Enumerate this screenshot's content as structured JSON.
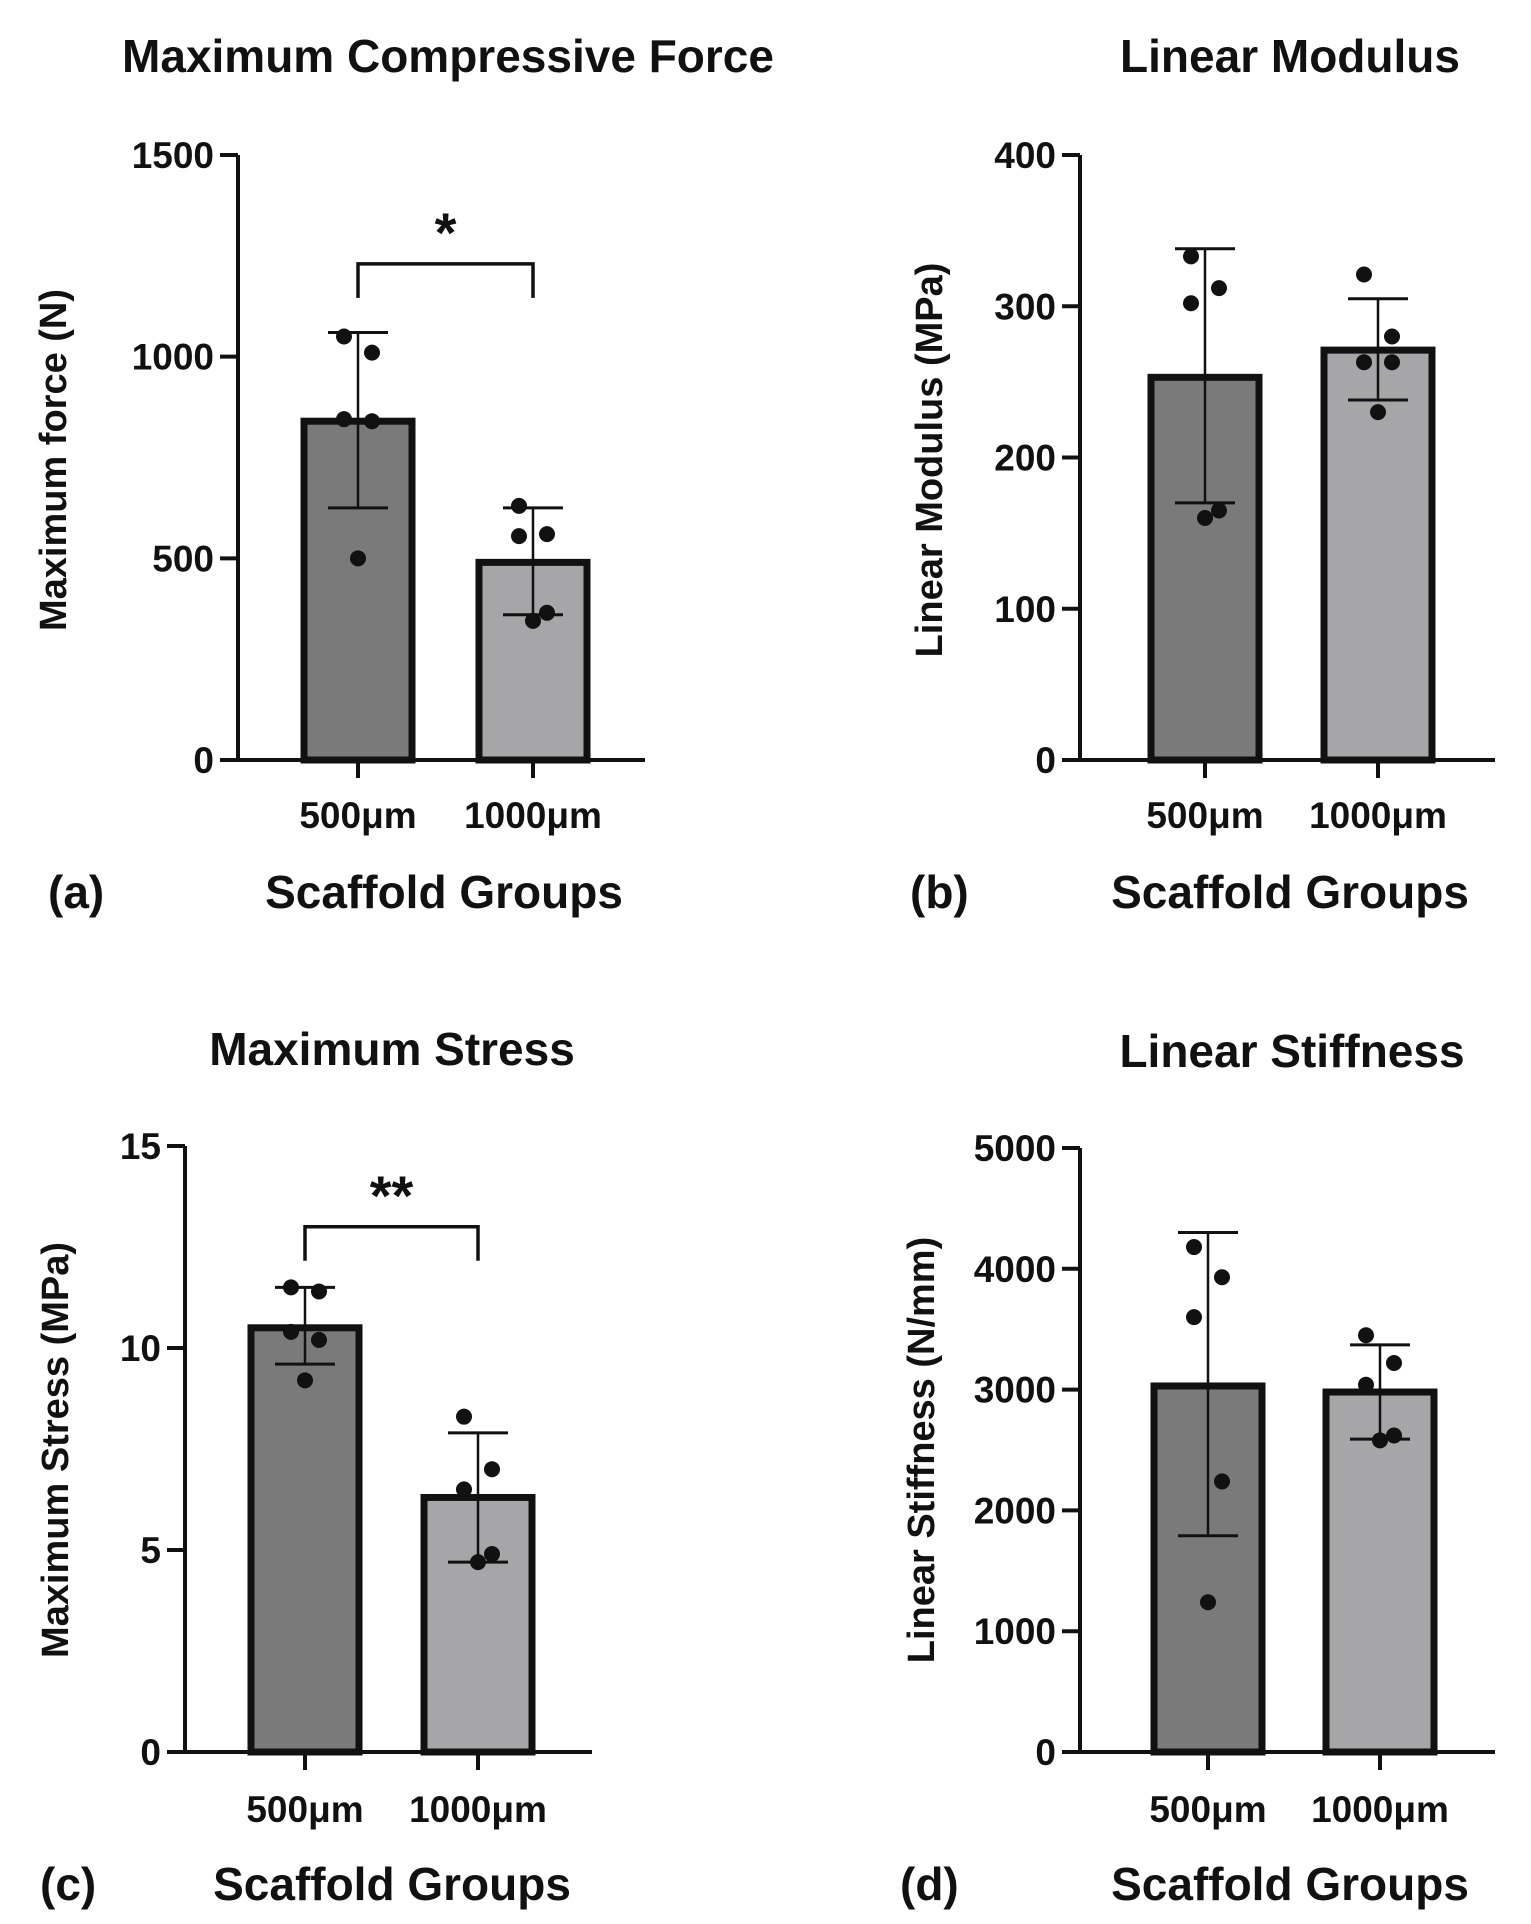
{
  "colors": {
    "bar_500": "#7a7a7a",
    "bar_1000": "#a6a6a9",
    "outline": "#111111",
    "background": "#ffffff"
  },
  "chart_data": [
    {
      "panel": "(a)",
      "type": "bar",
      "title": "Maximum Compressive Force",
      "xlabel": "Scaffold Groups",
      "ylabel": "Maximum force (N)",
      "ylim": [
        0,
        1500
      ],
      "yticks": [
        0,
        500,
        1000,
        1500
      ],
      "ytick_labels": [
        "0",
        "500",
        "1000",
        "1500"
      ],
      "categories": [
        "500μm",
        "1000μm"
      ],
      "values": [
        840,
        490
      ],
      "error_low": [
        625,
        360
      ],
      "error_high": [
        1060,
        625
      ],
      "points": [
        [
          1050,
          1010,
          845,
          840,
          500
        ],
        [
          630,
          560,
          555,
          365,
          345
        ]
      ],
      "significance": {
        "label": "*",
        "from": 0,
        "to": 1,
        "y": 1230
      }
    },
    {
      "panel": "(b)",
      "type": "bar",
      "title": "Linear Modulus",
      "xlabel": "Scaffold Groups",
      "ylabel": "Linear Modulus (MPa)",
      "ylim": [
        0,
        400
      ],
      "yticks": [
        0,
        100,
        200,
        300,
        400
      ],
      "ytick_labels": [
        "0",
        "100",
        "200",
        "300",
        "400"
      ],
      "categories": [
        "500μm",
        "1000μm"
      ],
      "values": [
        253,
        271
      ],
      "error_low": [
        170,
        238
      ],
      "error_high": [
        338,
        305
      ],
      "points": [
        [
          333,
          312,
          302,
          165,
          160
        ],
        [
          321,
          280,
          263,
          263,
          230
        ]
      ],
      "significance": null
    },
    {
      "panel": "(c)",
      "type": "bar",
      "title": "Maximum Stress",
      "xlabel": "Scaffold Groups",
      "ylabel": "Maximum Stress (MPa)",
      "ylim": [
        0,
        15
      ],
      "yticks": [
        0,
        5,
        10,
        15
      ],
      "ytick_labels": [
        "0",
        "5",
        "10",
        "15"
      ],
      "categories": [
        "500μm",
        "1000μm"
      ],
      "values": [
        10.5,
        6.3
      ],
      "error_low": [
        9.6,
        4.7
      ],
      "error_high": [
        11.5,
        7.9
      ],
      "points": [
        [
          11.5,
          11.4,
          10.4,
          10.2,
          9.2
        ],
        [
          8.3,
          7.0,
          6.5,
          4.9,
          4.7
        ]
      ],
      "significance": {
        "label": "**",
        "from": 0,
        "to": 1,
        "y": 13.0
      }
    },
    {
      "panel": "(d)",
      "type": "bar",
      "title": "Linear Stiffness",
      "xlabel": "Scaffold Groups",
      "ylabel": "Linear Stiffness (N/mm)",
      "ylim": [
        0,
        5000
      ],
      "yticks": [
        0,
        1000,
        2000,
        3000,
        4000,
        5000
      ],
      "ytick_labels": [
        "0",
        "1000",
        "2000",
        "3000",
        "4000",
        "5000"
      ],
      "categories": [
        "500μm",
        "1000μm"
      ],
      "values": [
        3030,
        2980
      ],
      "error_low": [
        1790,
        2590
      ],
      "error_high": [
        4300,
        3370
      ],
      "points": [
        [
          4180,
          3930,
          3600,
          2240,
          1240
        ],
        [
          3450,
          3220,
          3040,
          2620,
          2580
        ]
      ],
      "significance": null
    }
  ]
}
